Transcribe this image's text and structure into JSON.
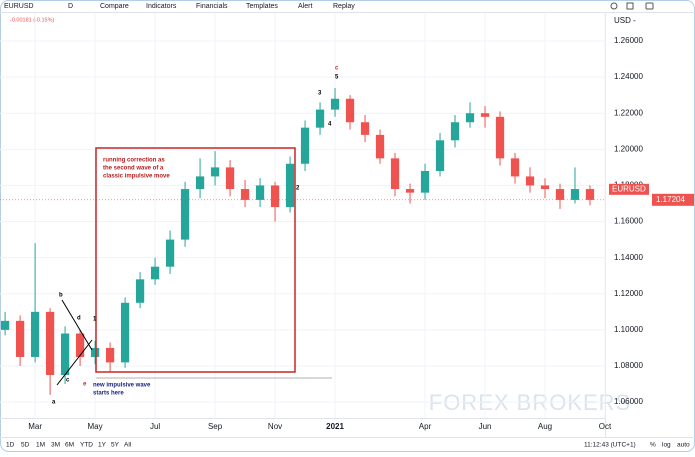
{
  "ui": {
    "toolbar": [
      "EURUSD",
      "D",
      "Compare",
      "Indicators",
      "Financials",
      "Templates",
      "Alert",
      "Replay"
    ],
    "change": "-0.00181 (-0.15%)",
    "currency": "USD -",
    "ranges": [
      "1D",
      "5D",
      "1M",
      "3M",
      "6M",
      "YTD",
      "1Y",
      "5Y",
      "All"
    ],
    "clock": "11:12:43 (UTC+1)",
    "scale_options": [
      "%",
      "log",
      "auto"
    ],
    "watermark": "FOREX BROKERS"
  },
  "chart_data": {
    "type": "candlestick",
    "symbol": "EURUSD",
    "last_price": 1.17204,
    "x": [
      1.0,
      1.5,
      2.0,
      2.5,
      3.0,
      3.5,
      4.0,
      4.5,
      5.0,
      5.5,
      6.0,
      6.5,
      7.0,
      7.5,
      8.0,
      8.5,
      9.0,
      9.5,
      10.0,
      10.5,
      11.0,
      11.5,
      12.0,
      12.5,
      13.0,
      13.5,
      14.0,
      14.5,
      15.0,
      15.5,
      16.0,
      16.5,
      17.0,
      17.5,
      18.0,
      18.5,
      19.0,
      19.5,
      20.0,
      20.5
    ],
    "open": [
      1.1,
      1.105,
      1.085,
      1.11,
      1.075,
      1.098,
      1.085,
      1.09,
      1.082,
      1.115,
      1.128,
      1.135,
      1.15,
      1.178,
      1.185,
      1.19,
      1.178,
      1.172,
      1.18,
      1.168,
      1.192,
      1.212,
      1.222,
      1.228,
      1.215,
      1.208,
      1.195,
      1.178,
      1.176,
      1.188,
      1.205,
      1.215,
      1.22,
      1.218,
      1.195,
      1.185,
      1.18,
      1.178,
      1.172,
      1.178
    ],
    "high": [
      1.11,
      1.108,
      1.148,
      1.112,
      1.102,
      1.1,
      1.094,
      1.093,
      1.118,
      1.132,
      1.14,
      1.155,
      1.182,
      1.195,
      1.199,
      1.194,
      1.183,
      1.184,
      1.182,
      1.196,
      1.216,
      1.226,
      1.234,
      1.23,
      1.219,
      1.211,
      1.198,
      1.181,
      1.192,
      1.209,
      1.219,
      1.226,
      1.224,
      1.221,
      1.198,
      1.19,
      1.184,
      1.181,
      1.19,
      1.18
    ],
    "low": [
      1.097,
      1.08,
      1.082,
      1.064,
      1.07,
      1.08,
      1.081,
      1.077,
      1.079,
      1.112,
      1.125,
      1.131,
      1.146,
      1.173,
      1.18,
      1.174,
      1.168,
      1.168,
      1.16,
      1.165,
      1.188,
      1.208,
      1.218,
      1.211,
      1.204,
      1.192,
      1.174,
      1.17,
      1.172,
      1.185,
      1.201,
      1.212,
      1.212,
      1.191,
      1.181,
      1.176,
      1.173,
      1.167,
      1.17,
      1.169
    ],
    "close": [
      1.105,
      1.085,
      1.11,
      1.075,
      1.098,
      1.085,
      1.09,
      1.082,
      1.115,
      1.128,
      1.135,
      1.15,
      1.178,
      1.185,
      1.19,
      1.178,
      1.172,
      1.18,
      1.168,
      1.192,
      1.212,
      1.222,
      1.228,
      1.215,
      1.208,
      1.195,
      1.178,
      1.176,
      1.188,
      1.205,
      1.215,
      1.22,
      1.218,
      1.195,
      1.185,
      1.18,
      1.178,
      1.172,
      1.178,
      1.172
    ],
    "up_color": "#26a69a",
    "down_color": "#ef5350",
    "xlim": [
      0.83,
      21
    ],
    "xticks": [
      {
        "value": 2,
        "label": "Mar"
      },
      {
        "value": 4,
        "label": "May"
      },
      {
        "value": 6,
        "label": "Jul"
      },
      {
        "value": 8,
        "label": "Sep"
      },
      {
        "value": 10,
        "label": "Nov"
      },
      {
        "value": 12,
        "label": "2021"
      },
      {
        "value": 15,
        "label": "Apr"
      },
      {
        "value": 17,
        "label": "Jun"
      },
      {
        "value": 19,
        "label": "Aug"
      },
      {
        "value": 21,
        "label": "Oct"
      }
    ],
    "ylim": [
      1.0512,
      1.2755
    ],
    "yticks": [
      {
        "value": 1.06,
        "label": "1.06000"
      },
      {
        "value": 1.08,
        "label": "1.08000"
      },
      {
        "value": 1.1,
        "label": "1.10000"
      },
      {
        "value": 1.12,
        "label": "1.12000"
      },
      {
        "value": 1.14,
        "label": "1.14000"
      },
      {
        "value": 1.16,
        "label": "1.16000"
      },
      {
        "value": 1.18,
        "label": "1.18000"
      },
      {
        "value": 1.2,
        "label": "1.20000"
      },
      {
        "value": 1.22,
        "label": "1.22000"
      },
      {
        "value": 1.24,
        "label": "1.24000"
      },
      {
        "value": 1.26,
        "label": "1.26000"
      }
    ],
    "grid": true,
    "annotations": {
      "box_note": [
        "running correction as",
        "the second wave of a",
        "classic impulsive move"
      ],
      "impulse_note": [
        "new impulsive wave",
        "starts here"
      ],
      "waves_early": [
        "a",
        "b",
        "c",
        "d",
        "e"
      ],
      "waves_impulse": [
        "1",
        "2",
        "3",
        "4",
        "5"
      ],
      "top_c": "c"
    }
  }
}
